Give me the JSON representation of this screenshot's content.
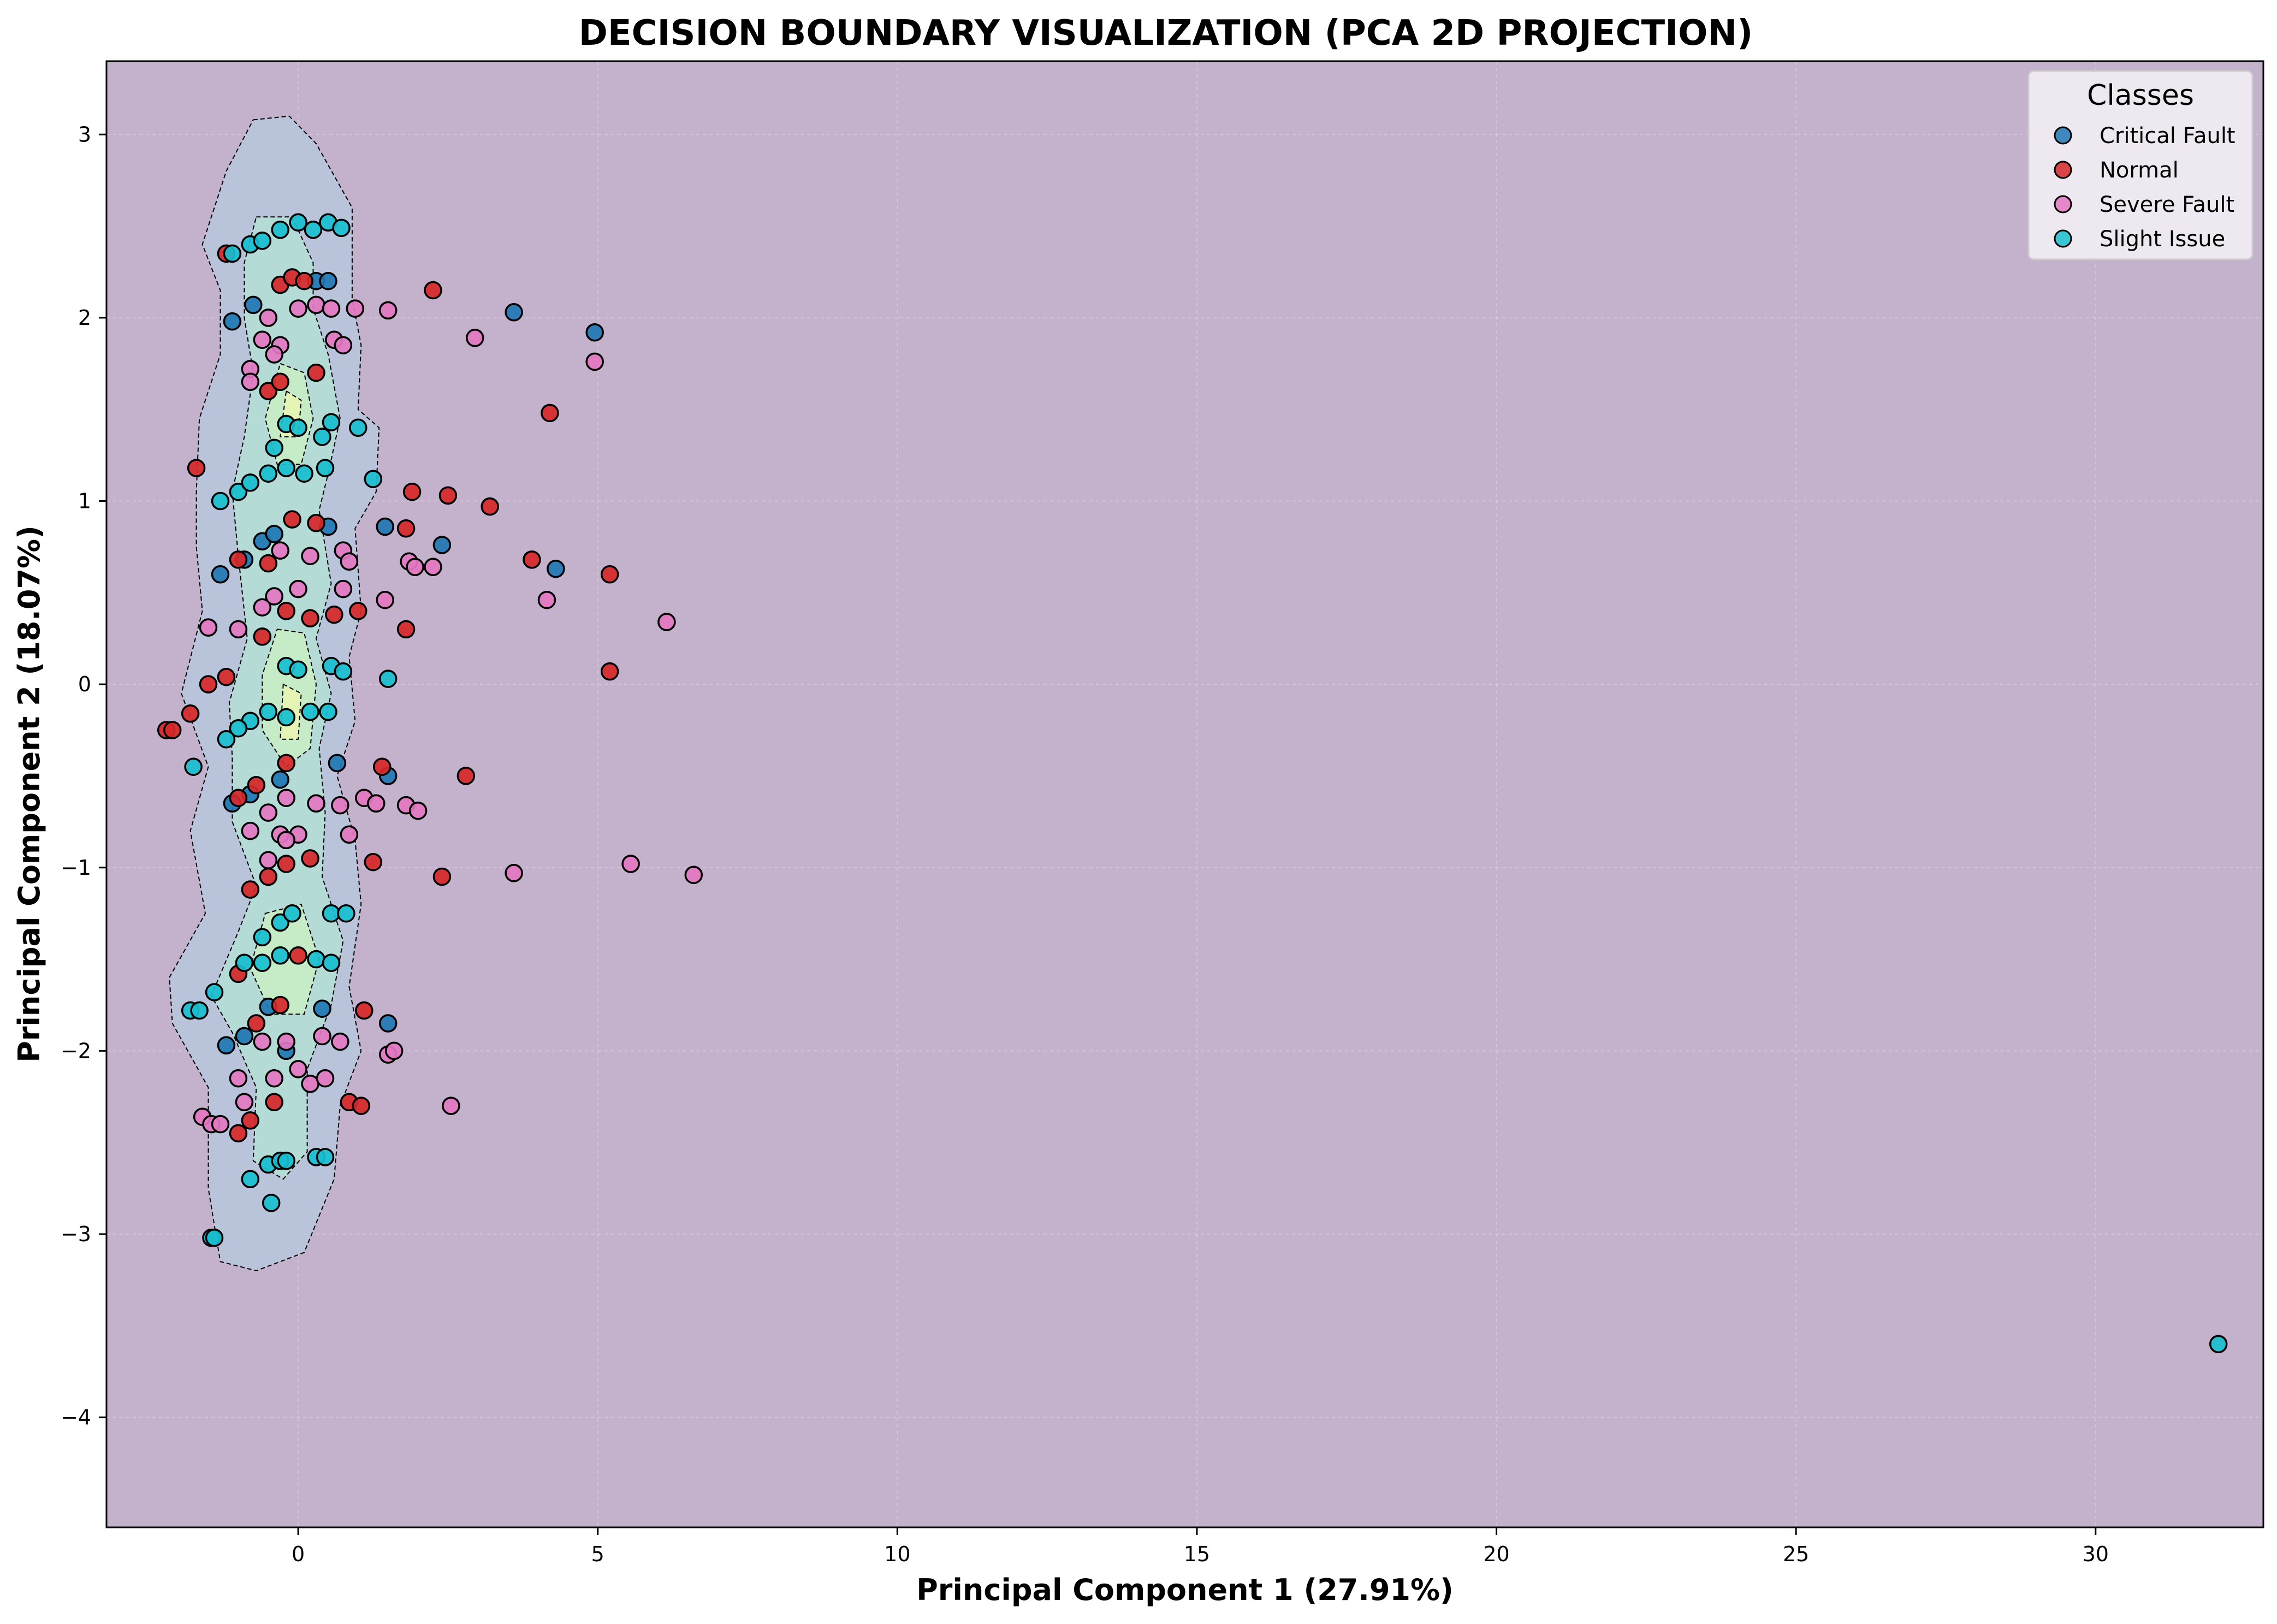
{
  "chart_data": {
    "type": "scatter",
    "title": "DECISION BOUNDARY VISUALIZATION (PCA 2D PROJECTION)",
    "xlabel": "Principal Component 1 (27.91%)",
    "ylabel": "Principal Component 2 (18.07%)",
    "xlim": [
      -3.2,
      32.8
    ],
    "ylim": [
      -4.6,
      3.4
    ],
    "xticks": [
      0,
      5,
      10,
      15,
      20,
      25,
      30
    ],
    "yticks": [
      -4,
      -3,
      -2,
      -1,
      0,
      1,
      2,
      3
    ],
    "grid": true,
    "legend": {
      "title": "Classes",
      "position": "top-right"
    },
    "background_color": "#c4b1cb",
    "series": [
      {
        "name": "Critical Fault",
        "color": "#1f77b4",
        "points": [
          [
            -1.1,
            1.98
          ],
          [
            -0.75,
            2.07
          ],
          [
            0.3,
            2.2
          ],
          [
            0.5,
            2.2
          ],
          [
            3.6,
            2.03
          ],
          [
            4.95,
            1.92
          ],
          [
            -0.9,
            0.68
          ],
          [
            -0.6,
            0.78
          ],
          [
            -0.4,
            0.82
          ],
          [
            0.5,
            0.86
          ],
          [
            1.45,
            0.86
          ],
          [
            2.4,
            0.76
          ],
          [
            4.3,
            0.63
          ],
          [
            -1.3,
            0.6
          ],
          [
            0.65,
            -0.43
          ],
          [
            1.5,
            -0.5
          ],
          [
            -1.1,
            -0.65
          ],
          [
            -0.8,
            -0.6
          ],
          [
            -0.3,
            -0.52
          ],
          [
            0.4,
            -1.77
          ],
          [
            1.5,
            -1.85
          ],
          [
            -1.2,
            -1.97
          ],
          [
            -0.9,
            -1.92
          ],
          [
            -0.5,
            -1.76
          ],
          [
            -0.2,
            -2.0
          ]
        ]
      },
      {
        "name": "Normal",
        "color": "#d62728",
        "points": [
          [
            -1.2,
            2.35
          ],
          [
            -0.3,
            2.18
          ],
          [
            -0.1,
            2.22
          ],
          [
            0.1,
            2.2
          ],
          [
            2.25,
            2.15
          ],
          [
            4.2,
            1.48
          ],
          [
            -0.5,
            1.6
          ],
          [
            -0.3,
            1.65
          ],
          [
            0.3,
            1.7
          ],
          [
            -1.7,
            1.18
          ],
          [
            1.9,
            1.05
          ],
          [
            2.5,
            1.03
          ],
          [
            3.2,
            0.97
          ],
          [
            -0.1,
            0.9
          ],
          [
            0.3,
            0.88
          ],
          [
            1.8,
            0.85
          ],
          [
            -1.0,
            0.68
          ],
          [
            -0.5,
            0.66
          ],
          [
            3.9,
            0.68
          ],
          [
            5.2,
            0.6
          ],
          [
            0.6,
            0.38
          ],
          [
            1.0,
            0.4
          ],
          [
            -0.2,
            0.4
          ],
          [
            0.2,
            0.36
          ],
          [
            -0.6,
            0.26
          ],
          [
            1.8,
            0.3
          ],
          [
            -1.5,
            0.0
          ],
          [
            -1.2,
            0.04
          ],
          [
            5.2,
            0.07
          ],
          [
            -2.2,
            -0.25
          ],
          [
            -2.1,
            -0.25
          ],
          [
            -1.8,
            -0.16
          ],
          [
            -0.7,
            -0.55
          ],
          [
            -0.2,
            -0.43
          ],
          [
            1.4,
            -0.45
          ],
          [
            2.8,
            -0.5
          ],
          [
            -1.0,
            -0.62
          ],
          [
            -0.8,
            -1.12
          ],
          [
            -0.5,
            -1.05
          ],
          [
            -0.2,
            -0.98
          ],
          [
            0.2,
            -0.95
          ],
          [
            1.25,
            -0.97
          ],
          [
            2.4,
            -1.05
          ],
          [
            -1.0,
            -1.58
          ],
          [
            0.0,
            -1.48
          ],
          [
            -0.7,
            -1.85
          ],
          [
            -0.3,
            -1.75
          ],
          [
            1.1,
            -1.78
          ],
          [
            -0.8,
            -2.38
          ],
          [
            -0.4,
            -2.28
          ],
          [
            -1.0,
            -2.45
          ],
          [
            0.85,
            -2.28
          ],
          [
            1.05,
            -2.3
          ]
        ]
      },
      {
        "name": "Severe Fault",
        "color": "#e377c2",
        "points": [
          [
            -0.5,
            2.0
          ],
          [
            0.0,
            2.05
          ],
          [
            0.3,
            2.07
          ],
          [
            0.55,
            2.05
          ],
          [
            0.95,
            2.05
          ],
          [
            1.5,
            2.04
          ],
          [
            2.95,
            1.89
          ],
          [
            4.95,
            1.76
          ],
          [
            -0.8,
            1.72
          ],
          [
            -0.3,
            1.85
          ],
          [
            0.6,
            1.88
          ],
          [
            0.75,
            1.85
          ],
          [
            -0.6,
            1.88
          ],
          [
            -0.8,
            1.65
          ],
          [
            -0.4,
            1.8
          ],
          [
            -0.3,
            0.73
          ],
          [
            0.2,
            0.7
          ],
          [
            0.75,
            0.73
          ],
          [
            0.85,
            0.67
          ],
          [
            1.85,
            0.67
          ],
          [
            1.95,
            0.64
          ],
          [
            2.25,
            0.64
          ],
          [
            -0.6,
            0.42
          ],
          [
            -0.4,
            0.48
          ],
          [
            0.0,
            0.52
          ],
          [
            0.75,
            0.52
          ],
          [
            1.45,
            0.46
          ],
          [
            4.15,
            0.46
          ],
          [
            6.15,
            0.34
          ],
          [
            -1.5,
            0.31
          ],
          [
            -1.0,
            0.3
          ],
          [
            -0.5,
            -0.7
          ],
          [
            -0.2,
            -0.62
          ],
          [
            0.3,
            -0.65
          ],
          [
            0.7,
            -0.66
          ],
          [
            1.1,
            -0.62
          ],
          [
            1.3,
            -0.65
          ],
          [
            1.8,
            -0.66
          ],
          [
            2.0,
            -0.69
          ],
          [
            -0.8,
            -0.8
          ],
          [
            -0.3,
            -0.82
          ],
          [
            0.0,
            -0.82
          ],
          [
            0.85,
            -0.82
          ],
          [
            -0.5,
            -0.96
          ],
          [
            -0.2,
            -0.85
          ],
          [
            3.6,
            -1.03
          ],
          [
            5.55,
            -0.98
          ],
          [
            6.6,
            -1.04
          ],
          [
            -0.6,
            -1.95
          ],
          [
            -0.2,
            -1.95
          ],
          [
            0.4,
            -1.92
          ],
          [
            0.7,
            -1.95
          ],
          [
            1.5,
            -2.02
          ],
          [
            1.6,
            -2.0
          ],
          [
            -1.0,
            -2.15
          ],
          [
            -0.4,
            -2.15
          ],
          [
            0.2,
            -2.18
          ],
          [
            0.45,
            -2.15
          ],
          [
            2.55,
            -2.3
          ],
          [
            -1.6,
            -2.36
          ],
          [
            -1.45,
            -2.4
          ],
          [
            -1.3,
            -2.4
          ],
          [
            -0.9,
            -2.28
          ],
          [
            0.0,
            -2.1
          ]
        ]
      },
      {
        "name": "Slight Issue",
        "color": "#17becf",
        "points": [
          [
            -1.1,
            2.35
          ],
          [
            -0.8,
            2.4
          ],
          [
            -0.6,
            2.42
          ],
          [
            -0.3,
            2.48
          ],
          [
            0.0,
            2.52
          ],
          [
            0.25,
            2.48
          ],
          [
            0.5,
            2.52
          ],
          [
            0.72,
            2.49
          ],
          [
            -0.2,
            1.42
          ],
          [
            0.0,
            1.4
          ],
          [
            0.4,
            1.35
          ],
          [
            0.55,
            1.43
          ],
          [
            1.0,
            1.4
          ],
          [
            -0.4,
            1.29
          ],
          [
            -1.3,
            1.0
          ],
          [
            -1.0,
            1.05
          ],
          [
            -0.8,
            1.1
          ],
          [
            -0.5,
            1.15
          ],
          [
            -0.2,
            1.18
          ],
          [
            0.1,
            1.15
          ],
          [
            0.45,
            1.18
          ],
          [
            1.25,
            1.12
          ],
          [
            -0.2,
            0.1
          ],
          [
            0.0,
            0.08
          ],
          [
            0.55,
            0.1
          ],
          [
            0.75,
            0.07
          ],
          [
            1.5,
            0.03
          ],
          [
            -0.8,
            -0.2
          ],
          [
            -0.5,
            -0.15
          ],
          [
            -0.2,
            -0.18
          ],
          [
            0.2,
            -0.15
          ],
          [
            0.5,
            -0.15
          ],
          [
            -1.0,
            -0.24
          ],
          [
            -1.2,
            -0.3
          ],
          [
            -1.75,
            -0.45
          ],
          [
            -0.6,
            -1.38
          ],
          [
            -0.3,
            -1.3
          ],
          [
            -0.1,
            -1.25
          ],
          [
            0.55,
            -1.25
          ],
          [
            0.8,
            -1.25
          ],
          [
            -0.9,
            -1.52
          ],
          [
            -0.6,
            -1.52
          ],
          [
            -0.3,
            -1.48
          ],
          [
            0.3,
            -1.5
          ],
          [
            0.55,
            -1.52
          ],
          [
            -1.4,
            -1.68
          ],
          [
            -1.8,
            -1.78
          ],
          [
            -1.65,
            -1.78
          ],
          [
            -0.8,
            -2.7
          ],
          [
            -0.5,
            -2.62
          ],
          [
            -0.3,
            -2.6
          ],
          [
            -0.2,
            -2.6
          ],
          [
            0.3,
            -2.58
          ],
          [
            0.45,
            -2.58
          ],
          [
            -0.45,
            -2.83
          ],
          [
            -1.45,
            -3.02
          ],
          [
            -1.4,
            -3.02
          ],
          [
            32.05,
            -3.6
          ]
        ]
      }
    ],
    "boundary_colors": [
      "#c4b1cb",
      "#b7c8dd",
      "#b3dfd3",
      "#c9efc4",
      "#e9f6b2"
    ]
  }
}
